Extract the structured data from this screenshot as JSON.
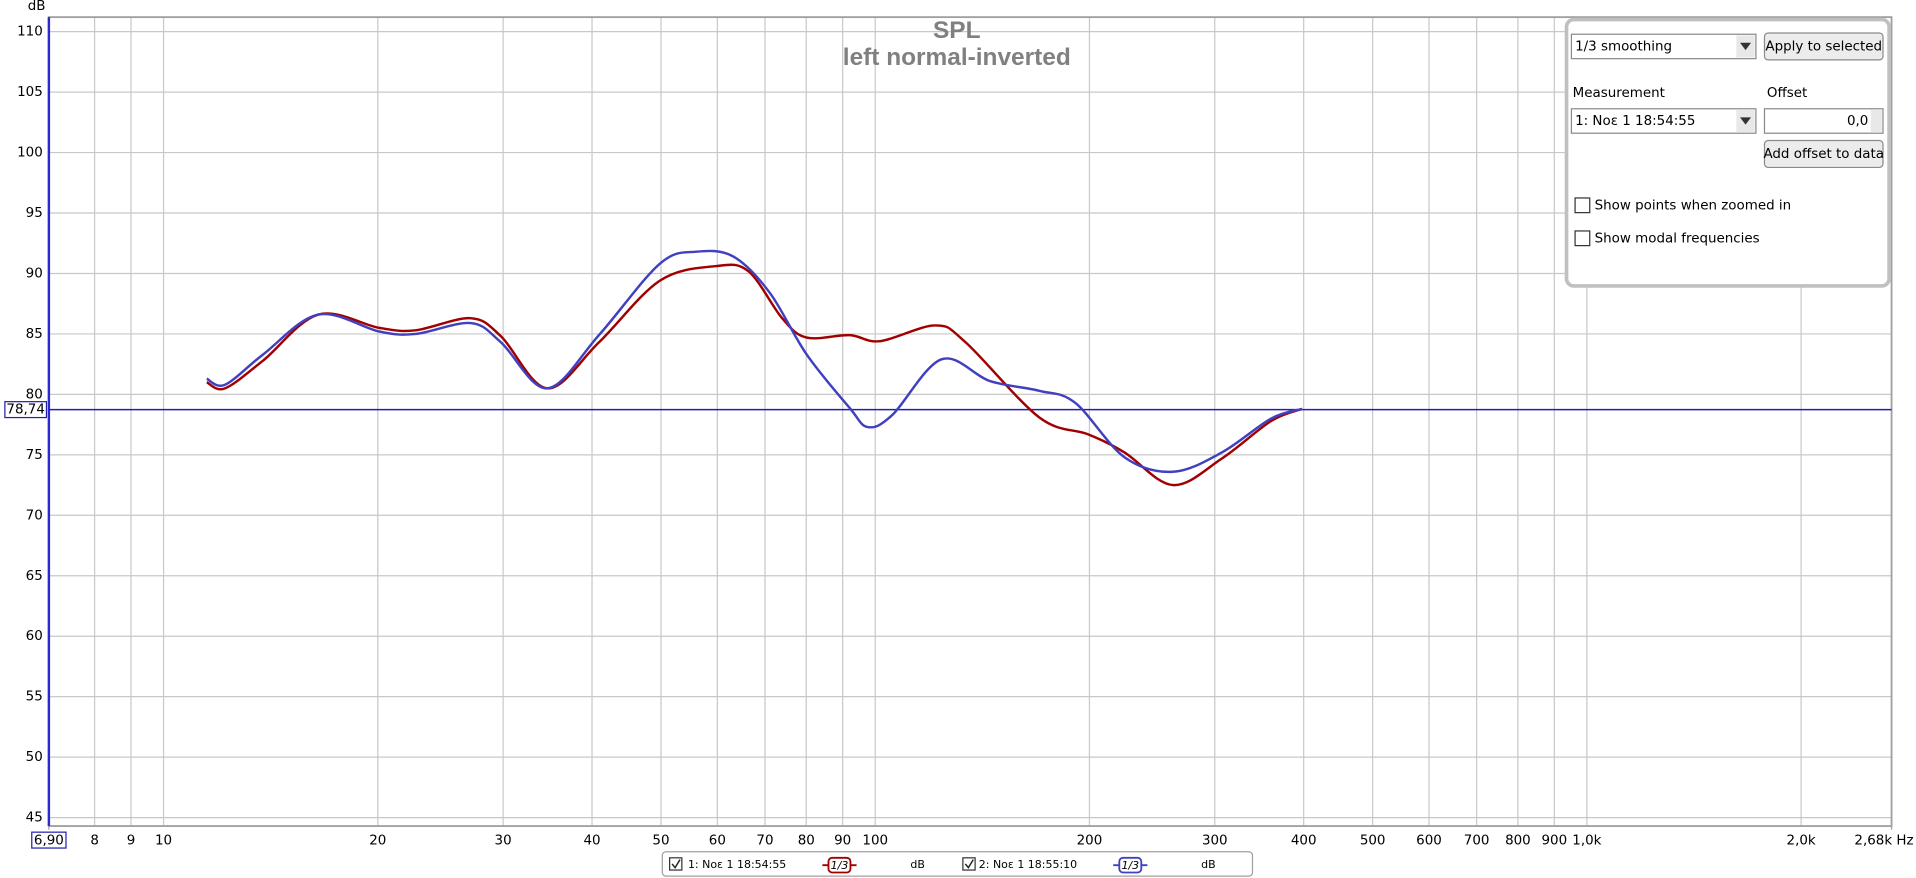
{
  "chart_data": {
    "type": "line",
    "title": "SPL",
    "subtitle": "left normal-inverted",
    "y_label": "dB",
    "xscale": "log",
    "grid": true,
    "xlim": [
      6.9,
      2680
    ],
    "ylim": [
      44.3,
      111.2
    ],
    "xticks": [
      {
        "value": 6.9,
        "label": "6,90"
      },
      8,
      9,
      10,
      20,
      30,
      40,
      50,
      60,
      70,
      80,
      90,
      100,
      200,
      300,
      400,
      500,
      600,
      700,
      800,
      900,
      {
        "value": 1000,
        "label": "1,0k"
      },
      {
        "value": 2000,
        "label": "2,0k"
      },
      {
        "value": 2680,
        "label": "2,68k Hz"
      }
    ],
    "yticks": [
      45,
      50,
      55,
      60,
      65,
      70,
      75,
      80,
      85,
      90,
      95,
      100,
      105,
      110
    ],
    "cursor": {
      "value": 78.74,
      "label": "78,74",
      "color": "#2020b0"
    },
    "series": [
      {
        "name": "1: Νοε 1 18:54:55",
        "color": "#a00000",
        "smoothing": "1/3",
        "unit": "dB",
        "x": [
          11.5,
          12.2,
          13.8,
          16.5,
          20.1,
          22.6,
          27.0,
          29.8,
          34.6,
          40.9,
          49.8,
          59.6,
          66.3,
          74.0,
          80.1,
          92.0,
          101.6,
          121.4,
          134,
          170,
          199,
          224,
          262,
          307,
          360,
          398
        ],
        "values": [
          81.0,
          80.5,
          82.8,
          86.6,
          85.5,
          85.3,
          86.3,
          84.8,
          80.5,
          84.3,
          89.4,
          90.6,
          90.2,
          86.3,
          84.7,
          84.9,
          84.4,
          85.7,
          84.3,
          78.1,
          76.7,
          75.2,
          72.5,
          74.7,
          77.8,
          78.8
        ]
      },
      {
        "name": "2: Νοε 1 18:55:10",
        "color": "#4040c0",
        "smoothing": "1/3",
        "unit": "dB",
        "x": [
          11.5,
          12.2,
          13.8,
          16.5,
          20.1,
          22.6,
          27.0,
          29.8,
          34.6,
          40.9,
          49.8,
          56.1,
          63.2,
          71.1,
          80.1,
          92.0,
          97.6,
          105.7,
          123.9,
          145,
          170,
          191,
          224,
          262,
          307,
          360,
          398
        ],
        "values": [
          81.3,
          80.8,
          83.3,
          86.6,
          85.2,
          85.0,
          85.9,
          84.3,
          80.5,
          84.9,
          90.8,
          91.8,
          91.4,
          88.4,
          83.3,
          78.9,
          77.3,
          78.3,
          82.9,
          81.1,
          80.3,
          79.3,
          74.8,
          73.6,
          75.2,
          78.0,
          78.8
        ]
      }
    ]
  },
  "panel": {
    "smoothing": "1/3 smoothing",
    "apply_button": "Apply to selected",
    "measurement_label": "Measurement",
    "offset_label": "Offset",
    "measurement": "1: Νοε 1 18:54:55",
    "offset": "0,0",
    "add_offset_button": "Add offset to data",
    "checkbox_points": "Show points when zoomed in",
    "checkbox_modal": "Show modal frequencies"
  }
}
